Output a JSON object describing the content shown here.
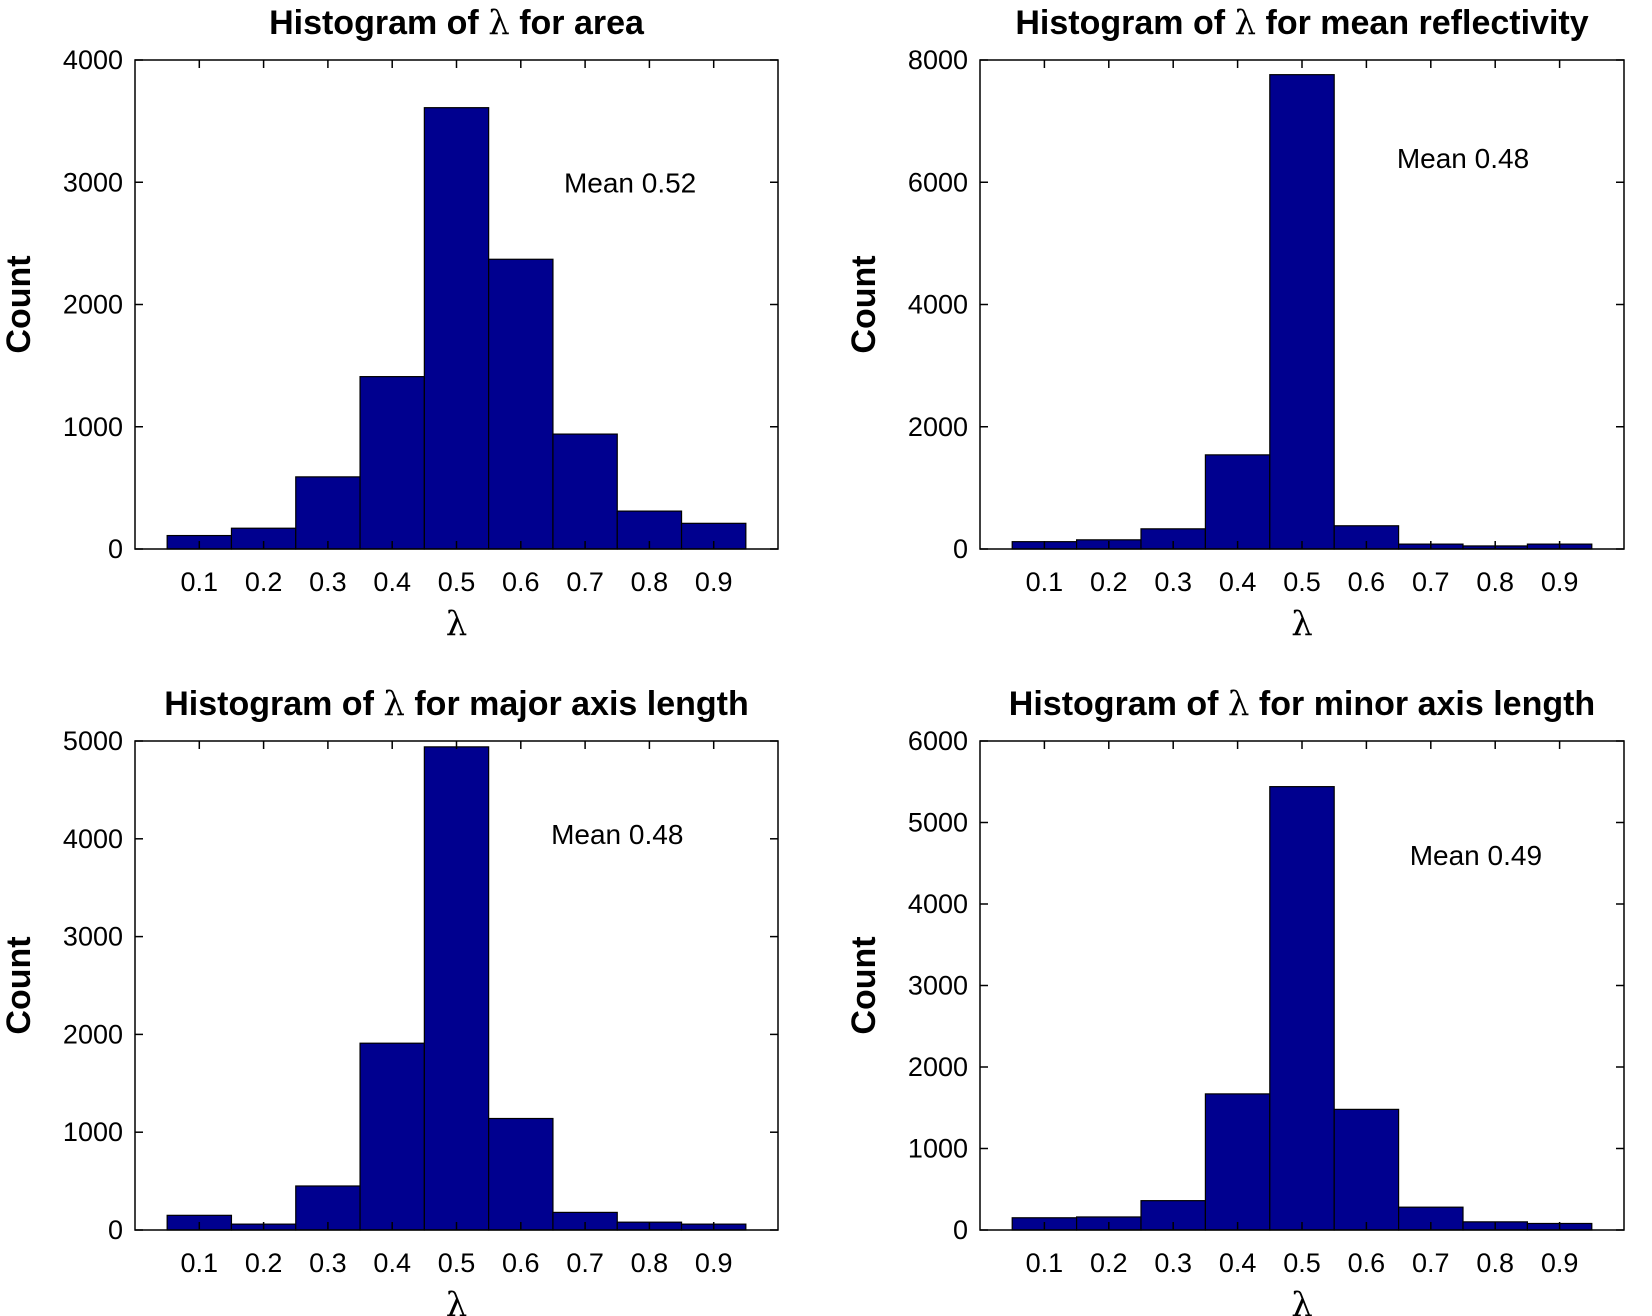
{
  "chart_data": [
    {
      "type": "bar",
      "title_prefix": "Histogram of ",
      "title_symbol": "λ",
      "title_suffix": " for area",
      "title": "Histogram of λ for area",
      "xlabel": "λ",
      "ylabel": "Count",
      "categories": [
        "0.1",
        "0.2",
        "0.3",
        "0.4",
        "0.5",
        "0.6",
        "0.7",
        "0.8",
        "0.9"
      ],
      "x": [
        0.1,
        0.2,
        0.3,
        0.4,
        0.5,
        0.6,
        0.7,
        0.8,
        0.9
      ],
      "values": [
        110,
        170,
        590,
        1410,
        3610,
        2370,
        940,
        310,
        210
      ],
      "xlim": [
        0.0,
        1.0
      ],
      "ylim": [
        0,
        4000
      ],
      "yticks": [
        0,
        1000,
        2000,
        3000,
        4000
      ],
      "annotation": "Mean 0.52",
      "annotation_pos": {
        "x": 0.77,
        "y": 3000
      },
      "grid": false
    },
    {
      "type": "bar",
      "title_prefix": "Histogram of ",
      "title_symbol": "λ",
      "title_suffix": " for mean reflectivity",
      "title": "Histogram of λ for mean reflectivity",
      "xlabel": "λ",
      "ylabel": "Count",
      "categories": [
        "0.1",
        "0.2",
        "0.3",
        "0.4",
        "0.5",
        "0.6",
        "0.7",
        "0.8",
        "0.9"
      ],
      "x": [
        0.1,
        0.2,
        0.3,
        0.4,
        0.5,
        0.6,
        0.7,
        0.8,
        0.9
      ],
      "values": [
        120,
        150,
        330,
        1540,
        7760,
        380,
        80,
        50,
        80
      ],
      "xlim": [
        0.0,
        1.0
      ],
      "ylim": [
        0,
        8000
      ],
      "yticks": [
        0,
        2000,
        4000,
        6000,
        8000
      ],
      "annotation": "Mean 0.48",
      "annotation_pos": {
        "x": 0.75,
        "y": 6400
      },
      "grid": false
    },
    {
      "type": "bar",
      "title_prefix": "Histogram of ",
      "title_symbol": "λ",
      "title_suffix": " for major axis length",
      "title": "Histogram of λ for major axis length",
      "xlabel": "λ",
      "ylabel": "Count",
      "categories": [
        "0.1",
        "0.2",
        "0.3",
        "0.4",
        "0.5",
        "0.6",
        "0.7",
        "0.8",
        "0.9"
      ],
      "x": [
        0.1,
        0.2,
        0.3,
        0.4,
        0.5,
        0.6,
        0.7,
        0.8,
        0.9
      ],
      "values": [
        150,
        60,
        450,
        1910,
        4940,
        1140,
        180,
        80,
        60
      ],
      "xlim": [
        0.0,
        1.0
      ],
      "ylim": [
        0,
        5000
      ],
      "yticks": [
        0,
        1000,
        2000,
        3000,
        4000,
        5000
      ],
      "annotation": "Mean 0.48",
      "annotation_pos": {
        "x": 0.75,
        "y": 4050
      },
      "grid": false
    },
    {
      "type": "bar",
      "title_prefix": "Histogram of ",
      "title_symbol": "λ",
      "title_suffix": " for minor axis length",
      "title": "Histogram of λ for minor axis length",
      "xlabel": "λ",
      "ylabel": "Count",
      "categories": [
        "0.1",
        "0.2",
        "0.3",
        "0.4",
        "0.5",
        "0.6",
        "0.7",
        "0.8",
        "0.9"
      ],
      "x": [
        0.1,
        0.2,
        0.3,
        0.4,
        0.5,
        0.6,
        0.7,
        0.8,
        0.9
      ],
      "values": [
        150,
        160,
        360,
        1670,
        5440,
        1480,
        280,
        100,
        80
      ],
      "xlim": [
        0.0,
        1.0
      ],
      "ylim": [
        0,
        6000
      ],
      "yticks": [
        0,
        1000,
        2000,
        3000,
        4000,
        5000,
        6000
      ],
      "annotation": "Mean 0.49",
      "annotation_pos": {
        "x": 0.77,
        "y": 4600
      },
      "grid": false
    }
  ],
  "colors": {
    "bar_fill": "#00008f",
    "bar_edge": "#000000",
    "axis": "#000000",
    "background": "#ffffff"
  }
}
